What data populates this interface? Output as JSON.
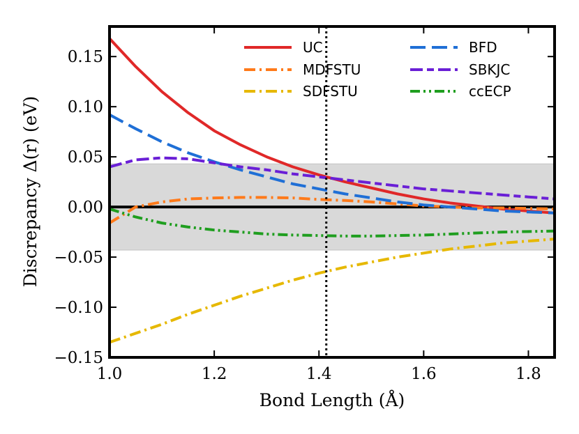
{
  "chart_data": {
    "type": "line",
    "xlabel": "Bond Length (Å)",
    "ylabel": "Discrepancy Δ(r) (eV)",
    "xlim": [
      1.0,
      1.85
    ],
    "ylim": [
      -0.15,
      0.18
    ],
    "xticks": [
      1.0,
      1.2,
      1.4,
      1.6,
      1.8
    ],
    "yticks": [
      -0.15,
      -0.1,
      -0.05,
      0.0,
      0.05,
      0.1,
      0.15
    ],
    "xtick_labels": [
      "1.0",
      "1.2",
      "1.4",
      "1.6",
      "1.8"
    ],
    "ytick_labels": [
      "−0.15",
      "−0.10",
      "−0.05",
      "0.00",
      "0.05",
      "0.10",
      "0.15"
    ],
    "band": {
      "ymin": -0.043,
      "ymax": 0.043,
      "color": "#d9d9d9"
    },
    "reference_line": {
      "y": 0.0,
      "color": "#000000"
    },
    "vertical_marker": {
      "x": 1.414,
      "color": "#000000",
      "style": "dotted"
    },
    "legend": {
      "placement": "top-right",
      "columns": 2
    },
    "x": [
      1.0,
      1.05,
      1.1,
      1.15,
      1.2,
      1.25,
      1.3,
      1.35,
      1.4,
      1.45,
      1.5,
      1.55,
      1.6,
      1.65,
      1.7,
      1.75,
      1.8,
      1.85
    ],
    "series": [
      {
        "name": "UC",
        "color": "#e02828",
        "dash": "solid",
        "values": [
          0.168,
          0.14,
          0.115,
          0.094,
          0.076,
          0.062,
          0.05,
          0.04,
          0.032,
          0.025,
          0.019,
          0.013,
          0.008,
          0.004,
          0.001,
          -0.002,
          -0.004,
          -0.006
        ]
      },
      {
        "name": "MDFSTU",
        "color": "#ff7a1a",
        "dash": "dashdot",
        "values": [
          -0.016,
          0.0,
          0.005,
          0.008,
          0.009,
          0.0095,
          0.0095,
          0.009,
          0.0075,
          0.0065,
          0.005,
          0.003,
          0.001,
          0.0,
          -0.001,
          -0.001,
          -0.0015,
          -0.002
        ]
      },
      {
        "name": "SDFSTU",
        "color": "#e6b800",
        "dash": "dashdot",
        "values": [
          -0.135,
          -0.126,
          -0.117,
          -0.107,
          -0.098,
          -0.089,
          -0.081,
          -0.073,
          -0.066,
          -0.06,
          -0.055,
          -0.05,
          -0.046,
          -0.042,
          -0.039,
          -0.036,
          -0.034,
          -0.032
        ]
      },
      {
        "name": "BFD",
        "color": "#1f6fd6",
        "dash": "dashed",
        "values": [
          0.092,
          0.078,
          0.065,
          0.054,
          0.045,
          0.037,
          0.03,
          0.023,
          0.018,
          0.013,
          0.009,
          0.005,
          0.002,
          0.0,
          -0.002,
          -0.004,
          -0.005,
          -0.006
        ]
      },
      {
        "name": "SBKJC",
        "color": "#6a1fd6",
        "dash": "dashdash",
        "values": [
          0.04,
          0.047,
          0.049,
          0.048,
          0.044,
          0.04,
          0.037,
          0.033,
          0.03,
          0.027,
          0.024,
          0.021,
          0.018,
          0.016,
          0.014,
          0.012,
          0.01,
          0.008
        ]
      },
      {
        "name": "ccECP",
        "color": "#1f9e1f",
        "dash": "dashdotdot",
        "values": [
          -0.002,
          -0.01,
          -0.016,
          -0.02,
          -0.023,
          -0.025,
          -0.027,
          -0.028,
          -0.0285,
          -0.029,
          -0.029,
          -0.0285,
          -0.028,
          -0.027,
          -0.026,
          -0.025,
          -0.0245,
          -0.024
        ]
      }
    ]
  }
}
